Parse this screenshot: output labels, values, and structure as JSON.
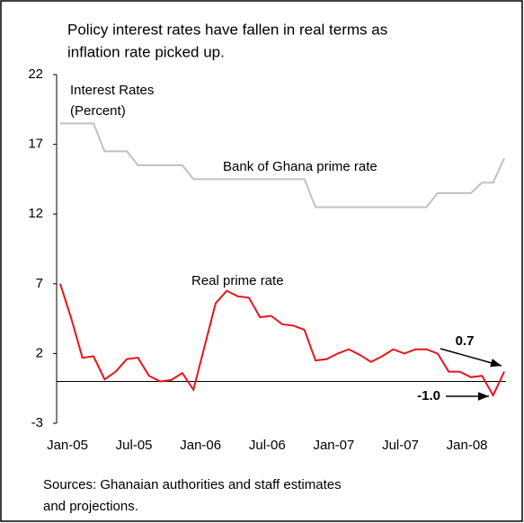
{
  "chart_data": {
    "type": "line",
    "title": [
      "Policy interest rates have fallen in real terms as",
      "inflation rate picked up."
    ],
    "y_label": [
      "Interest Rates",
      "(Percent)"
    ],
    "source": [
      "Sources: Ghanaian authorities and staff estimates",
      "and projections."
    ],
    "categories": [
      "Jan-05",
      null,
      null,
      null,
      null,
      null,
      "Jul-05",
      null,
      null,
      null,
      null,
      null,
      "Jan-06",
      null,
      null,
      null,
      null,
      null,
      "Jul-06",
      null,
      null,
      null,
      null,
      null,
      "Jan-07",
      null,
      null,
      null,
      null,
      null,
      "Jul-07",
      null,
      null,
      null,
      null,
      null,
      "Jan-08",
      null,
      null,
      null,
      null
    ],
    "ylim": [
      -3,
      22
    ],
    "yticks": [
      -3,
      2,
      7,
      12,
      17,
      22
    ],
    "grid": false,
    "series": [
      {
        "name": "Bank of Ghana prime rate",
        "color": "#c0c0c0",
        "values": [
          18.5,
          18.5,
          18.5,
          18.5,
          16.5,
          16.5,
          16.5,
          15.5,
          15.5,
          15.5,
          15.5,
          15.5,
          14.5,
          14.5,
          14.5,
          14.5,
          14.5,
          14.5,
          14.5,
          14.5,
          14.5,
          14.5,
          14.5,
          12.5,
          12.5,
          12.5,
          12.5,
          12.5,
          12.5,
          12.5,
          12.5,
          12.5,
          12.5,
          12.5,
          13.5,
          13.5,
          13.5,
          13.5,
          14.25,
          14.25,
          16.0
        ]
      },
      {
        "name": "Real prime rate",
        "color": "#e8141b",
        "values": [
          7.0,
          4.5,
          1.7,
          1.8,
          0.15,
          0.7,
          1.6,
          1.7,
          0.4,
          0.0,
          0.1,
          0.6,
          -0.6,
          2.5,
          5.6,
          6.5,
          6.1,
          6.0,
          4.6,
          4.7,
          4.1,
          4.0,
          3.7,
          1.5,
          1.6,
          2.0,
          2.3,
          1.9,
          1.4,
          1.8,
          2.3,
          2.0,
          2.3,
          2.3,
          2.0,
          0.7,
          0.7,
          0.3,
          0.4,
          -1.0,
          0.7
        ],
        "value_labels": [
          null,
          null,
          null,
          null,
          null,
          null,
          null,
          null,
          null,
          null,
          null,
          null,
          null,
          null,
          null,
          null,
          null,
          null,
          null,
          null,
          null,
          null,
          null,
          null,
          null,
          null,
          null,
          null,
          null,
          null,
          null,
          null,
          null,
          null,
          null,
          null,
          null,
          null,
          null,
          "-1.0",
          "0.7"
        ]
      }
    ]
  }
}
